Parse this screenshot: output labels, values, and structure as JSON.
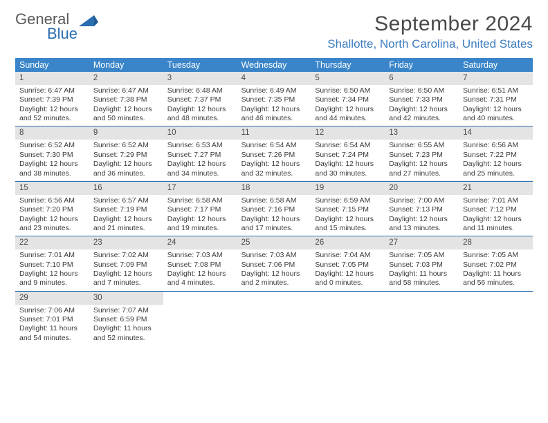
{
  "logo": {
    "text_top": "General",
    "text_bottom": "Blue"
  },
  "title": "September 2024",
  "location": "Shallotte, North Carolina, United States",
  "colors": {
    "header_bg": "#3a85c9",
    "header_text": "#ffffff",
    "daynum_bg": "#e4e4e4",
    "border": "#2a6db0",
    "accent": "#3a7bbf",
    "text": "#3a3a3a"
  },
  "day_headers": [
    "Sunday",
    "Monday",
    "Tuesday",
    "Wednesday",
    "Thursday",
    "Friday",
    "Saturday"
  ],
  "days": [
    {
      "n": "1",
      "sunrise": "6:47 AM",
      "sunset": "7:39 PM",
      "daylight": "12 hours and 52 minutes."
    },
    {
      "n": "2",
      "sunrise": "6:47 AM",
      "sunset": "7:38 PM",
      "daylight": "12 hours and 50 minutes."
    },
    {
      "n": "3",
      "sunrise": "6:48 AM",
      "sunset": "7:37 PM",
      "daylight": "12 hours and 48 minutes."
    },
    {
      "n": "4",
      "sunrise": "6:49 AM",
      "sunset": "7:35 PM",
      "daylight": "12 hours and 46 minutes."
    },
    {
      "n": "5",
      "sunrise": "6:50 AM",
      "sunset": "7:34 PM",
      "daylight": "12 hours and 44 minutes."
    },
    {
      "n": "6",
      "sunrise": "6:50 AM",
      "sunset": "7:33 PM",
      "daylight": "12 hours and 42 minutes."
    },
    {
      "n": "7",
      "sunrise": "6:51 AM",
      "sunset": "7:31 PM",
      "daylight": "12 hours and 40 minutes."
    },
    {
      "n": "8",
      "sunrise": "6:52 AM",
      "sunset": "7:30 PM",
      "daylight": "12 hours and 38 minutes."
    },
    {
      "n": "9",
      "sunrise": "6:52 AM",
      "sunset": "7:29 PM",
      "daylight": "12 hours and 36 minutes."
    },
    {
      "n": "10",
      "sunrise": "6:53 AM",
      "sunset": "7:27 PM",
      "daylight": "12 hours and 34 minutes."
    },
    {
      "n": "11",
      "sunrise": "6:54 AM",
      "sunset": "7:26 PM",
      "daylight": "12 hours and 32 minutes."
    },
    {
      "n": "12",
      "sunrise": "6:54 AM",
      "sunset": "7:24 PM",
      "daylight": "12 hours and 30 minutes."
    },
    {
      "n": "13",
      "sunrise": "6:55 AM",
      "sunset": "7:23 PM",
      "daylight": "12 hours and 27 minutes."
    },
    {
      "n": "14",
      "sunrise": "6:56 AM",
      "sunset": "7:22 PM",
      "daylight": "12 hours and 25 minutes."
    },
    {
      "n": "15",
      "sunrise": "6:56 AM",
      "sunset": "7:20 PM",
      "daylight": "12 hours and 23 minutes."
    },
    {
      "n": "16",
      "sunrise": "6:57 AM",
      "sunset": "7:19 PM",
      "daylight": "12 hours and 21 minutes."
    },
    {
      "n": "17",
      "sunrise": "6:58 AM",
      "sunset": "7:17 PM",
      "daylight": "12 hours and 19 minutes."
    },
    {
      "n": "18",
      "sunrise": "6:58 AM",
      "sunset": "7:16 PM",
      "daylight": "12 hours and 17 minutes."
    },
    {
      "n": "19",
      "sunrise": "6:59 AM",
      "sunset": "7:15 PM",
      "daylight": "12 hours and 15 minutes."
    },
    {
      "n": "20",
      "sunrise": "7:00 AM",
      "sunset": "7:13 PM",
      "daylight": "12 hours and 13 minutes."
    },
    {
      "n": "21",
      "sunrise": "7:01 AM",
      "sunset": "7:12 PM",
      "daylight": "12 hours and 11 minutes."
    },
    {
      "n": "22",
      "sunrise": "7:01 AM",
      "sunset": "7:10 PM",
      "daylight": "12 hours and 9 minutes."
    },
    {
      "n": "23",
      "sunrise": "7:02 AM",
      "sunset": "7:09 PM",
      "daylight": "12 hours and 7 minutes."
    },
    {
      "n": "24",
      "sunrise": "7:03 AM",
      "sunset": "7:08 PM",
      "daylight": "12 hours and 4 minutes."
    },
    {
      "n": "25",
      "sunrise": "7:03 AM",
      "sunset": "7:06 PM",
      "daylight": "12 hours and 2 minutes."
    },
    {
      "n": "26",
      "sunrise": "7:04 AM",
      "sunset": "7:05 PM",
      "daylight": "12 hours and 0 minutes."
    },
    {
      "n": "27",
      "sunrise": "7:05 AM",
      "sunset": "7:03 PM",
      "daylight": "11 hours and 58 minutes."
    },
    {
      "n": "28",
      "sunrise": "7:05 AM",
      "sunset": "7:02 PM",
      "daylight": "11 hours and 56 minutes."
    },
    {
      "n": "29",
      "sunrise": "7:06 AM",
      "sunset": "7:01 PM",
      "daylight": "11 hours and 54 minutes."
    },
    {
      "n": "30",
      "sunrise": "7:07 AM",
      "sunset": "6:59 PM",
      "daylight": "11 hours and 52 minutes."
    }
  ],
  "labels": {
    "sunrise": "Sunrise:",
    "sunset": "Sunset:",
    "daylight": "Daylight:"
  },
  "layout": {
    "start_day_index": 0,
    "weeks": 5,
    "cols": 7
  }
}
